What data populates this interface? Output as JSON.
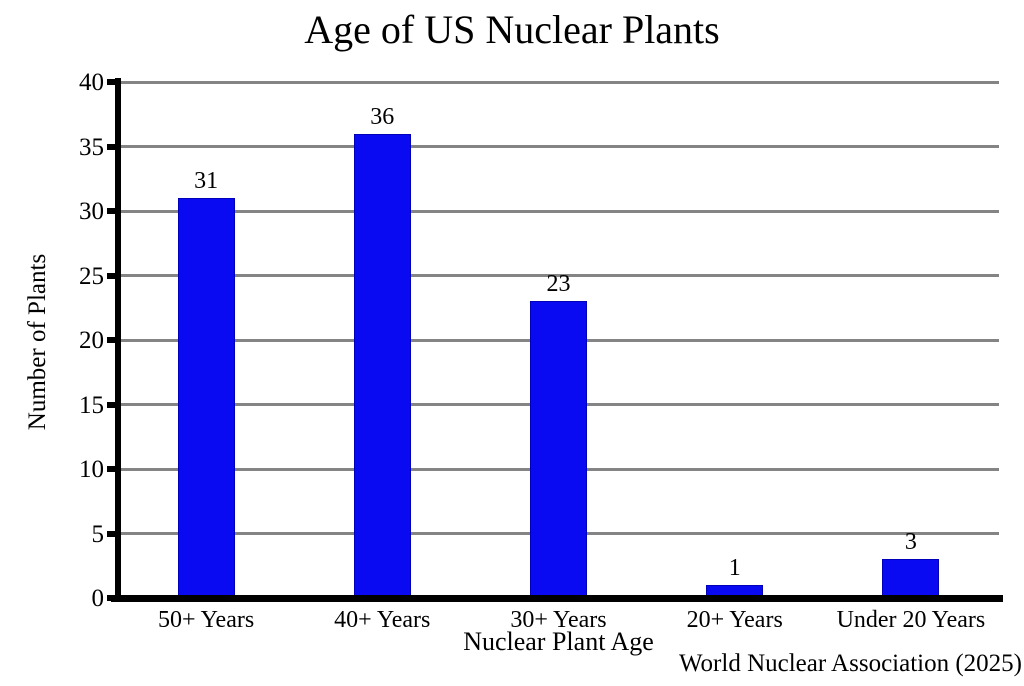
{
  "chart_data": {
    "type": "bar",
    "title": "Age of US Nuclear Plants",
    "categories": [
      "50+ Years",
      "40+ Years",
      "30+ Years",
      "20+ Years",
      "Under 20 Years"
    ],
    "values": [
      31,
      36,
      23,
      1,
      3
    ],
    "xlabel": "Nuclear Plant Age",
    "ylabel": "Number of Plants",
    "source": "World Nuclear Association (2025)",
    "ylim": [
      0,
      40
    ],
    "yticks": [
      0,
      5,
      10,
      15,
      20,
      25,
      30,
      35,
      40
    ],
    "grid": "horizontal-only",
    "legend": "none",
    "colors": {
      "bar_fill": "#0a0af2",
      "bar_border": "#0000b8",
      "gridline": "#848484",
      "axis": "#000000",
      "text": "#000000",
      "background": "#ffffff"
    }
  }
}
